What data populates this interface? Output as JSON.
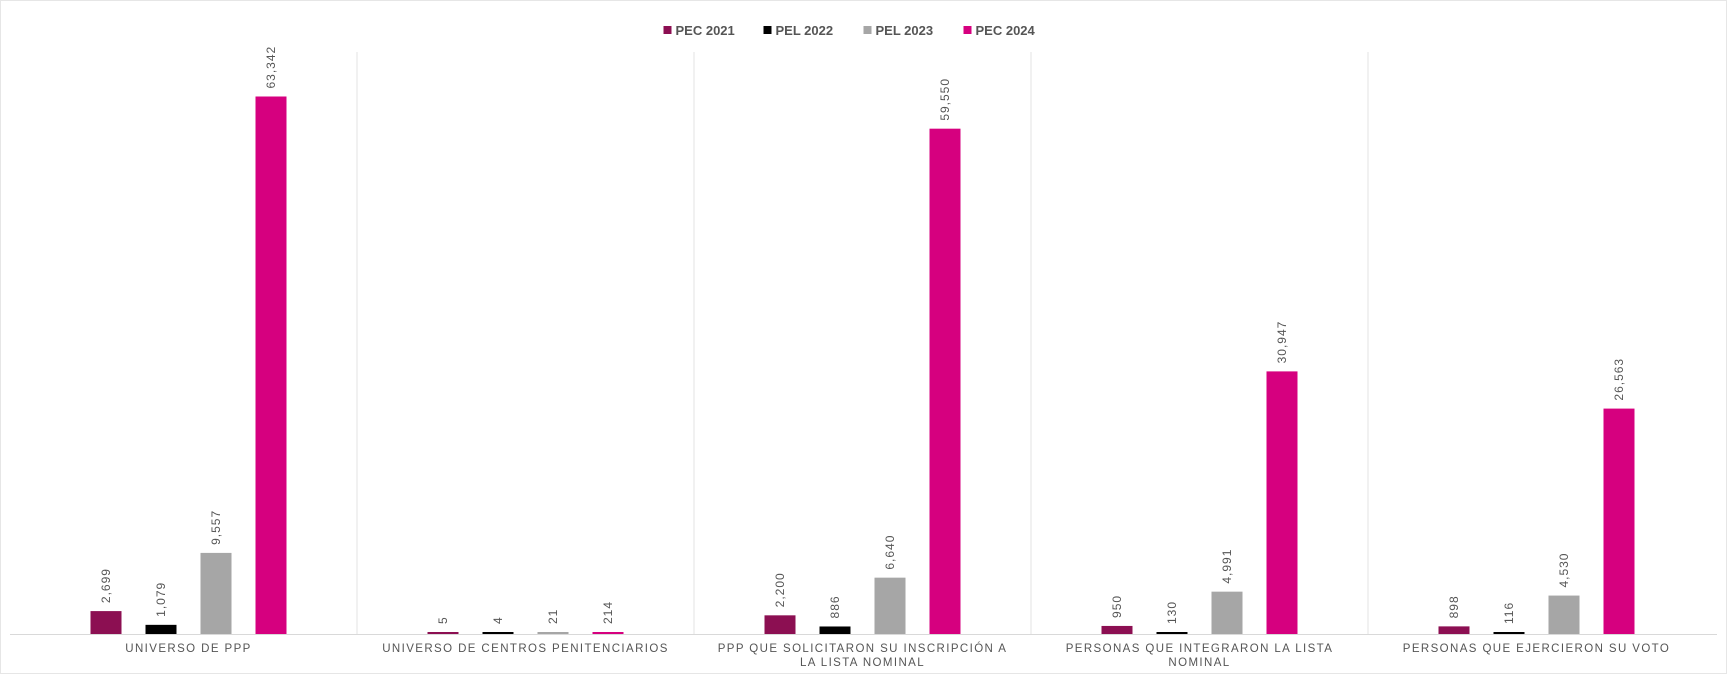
{
  "chart_data": {
    "type": "bar",
    "title": "",
    "xlabel": "",
    "ylabel": "",
    "ylim": [
      0,
      70000
    ],
    "grid": false,
    "legend_position": "top-center",
    "categories": [
      [
        "UNIVERSO DE PPP"
      ],
      [
        "UNIVERSO DE CENTROS PENITENCIARIOS"
      ],
      [
        "PPP QUE SOLICITARON SU INSCRIPCIÓN A",
        "LA LISTA NOMINAL"
      ],
      [
        "PERSONAS QUE INTEGRARON LA LISTA",
        "NOMINAL"
      ],
      [
        "PERSONAS QUE EJERCIERON SU VOTO"
      ]
    ],
    "series": [
      {
        "name": "PEC 2021",
        "color": "#8c0f52",
        "values": [
          2699,
          5,
          2200,
          950,
          898
        ],
        "labels": [
          "2,699",
          "5",
          "2,200",
          "950",
          "898"
        ]
      },
      {
        "name": "PEL 2022",
        "color": "#000000",
        "values": [
          1079,
          4,
          886,
          130,
          116
        ],
        "labels": [
          "1,079",
          "4",
          "886",
          "130",
          "116"
        ]
      },
      {
        "name": "PEL 2023",
        "color": "#a6a6a6",
        "values": [
          9557,
          21,
          6640,
          4991,
          4530
        ],
        "labels": [
          "9,557",
          "21",
          "6,640",
          "4,991",
          "4,530"
        ]
      },
      {
        "name": "PEC 2024",
        "color": "#d6007f",
        "values": [
          63342,
          214,
          59550,
          30947,
          26563
        ],
        "labels": [
          "63,342",
          "214",
          "59,550",
          "30,947",
          "26,563"
        ]
      }
    ]
  }
}
